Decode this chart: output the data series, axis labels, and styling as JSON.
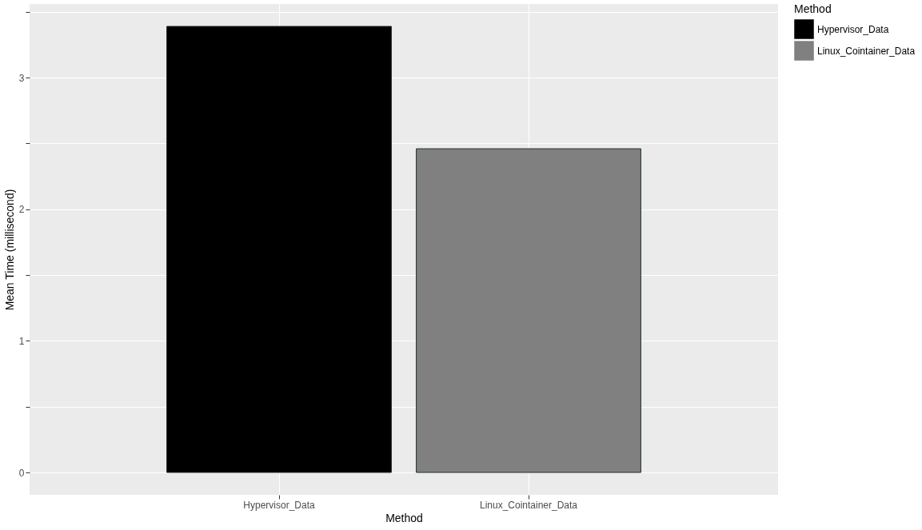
{
  "chart_data": {
    "type": "bar",
    "xlabel": "Method",
    "ylabel": "Mean Time (millisecond)",
    "legend_title": "Method",
    "categories": [
      "Hypervisor_Data",
      "Linux_Cointainer_Data"
    ],
    "series": [
      {
        "name": "Hypervisor_Data",
        "color": "#000000",
        "values": [
          3.39,
          null
        ]
      },
      {
        "name": "Linux_Cointainer_Data",
        "color": "#808080",
        "values": [
          null,
          2.46
        ]
      }
    ],
    "ylim": [
      -0.17,
      3.56
    ],
    "yticks": [
      0,
      {
        "value": 0.5,
        "label": null
      },
      1,
      {
        "value": 1.5,
        "label": null
      },
      2,
      {
        "value": 2.5,
        "label": null
      },
      3,
      {
        "value": 3.5,
        "label": null
      }
    ],
    "grid": true,
    "legend": "right"
  }
}
